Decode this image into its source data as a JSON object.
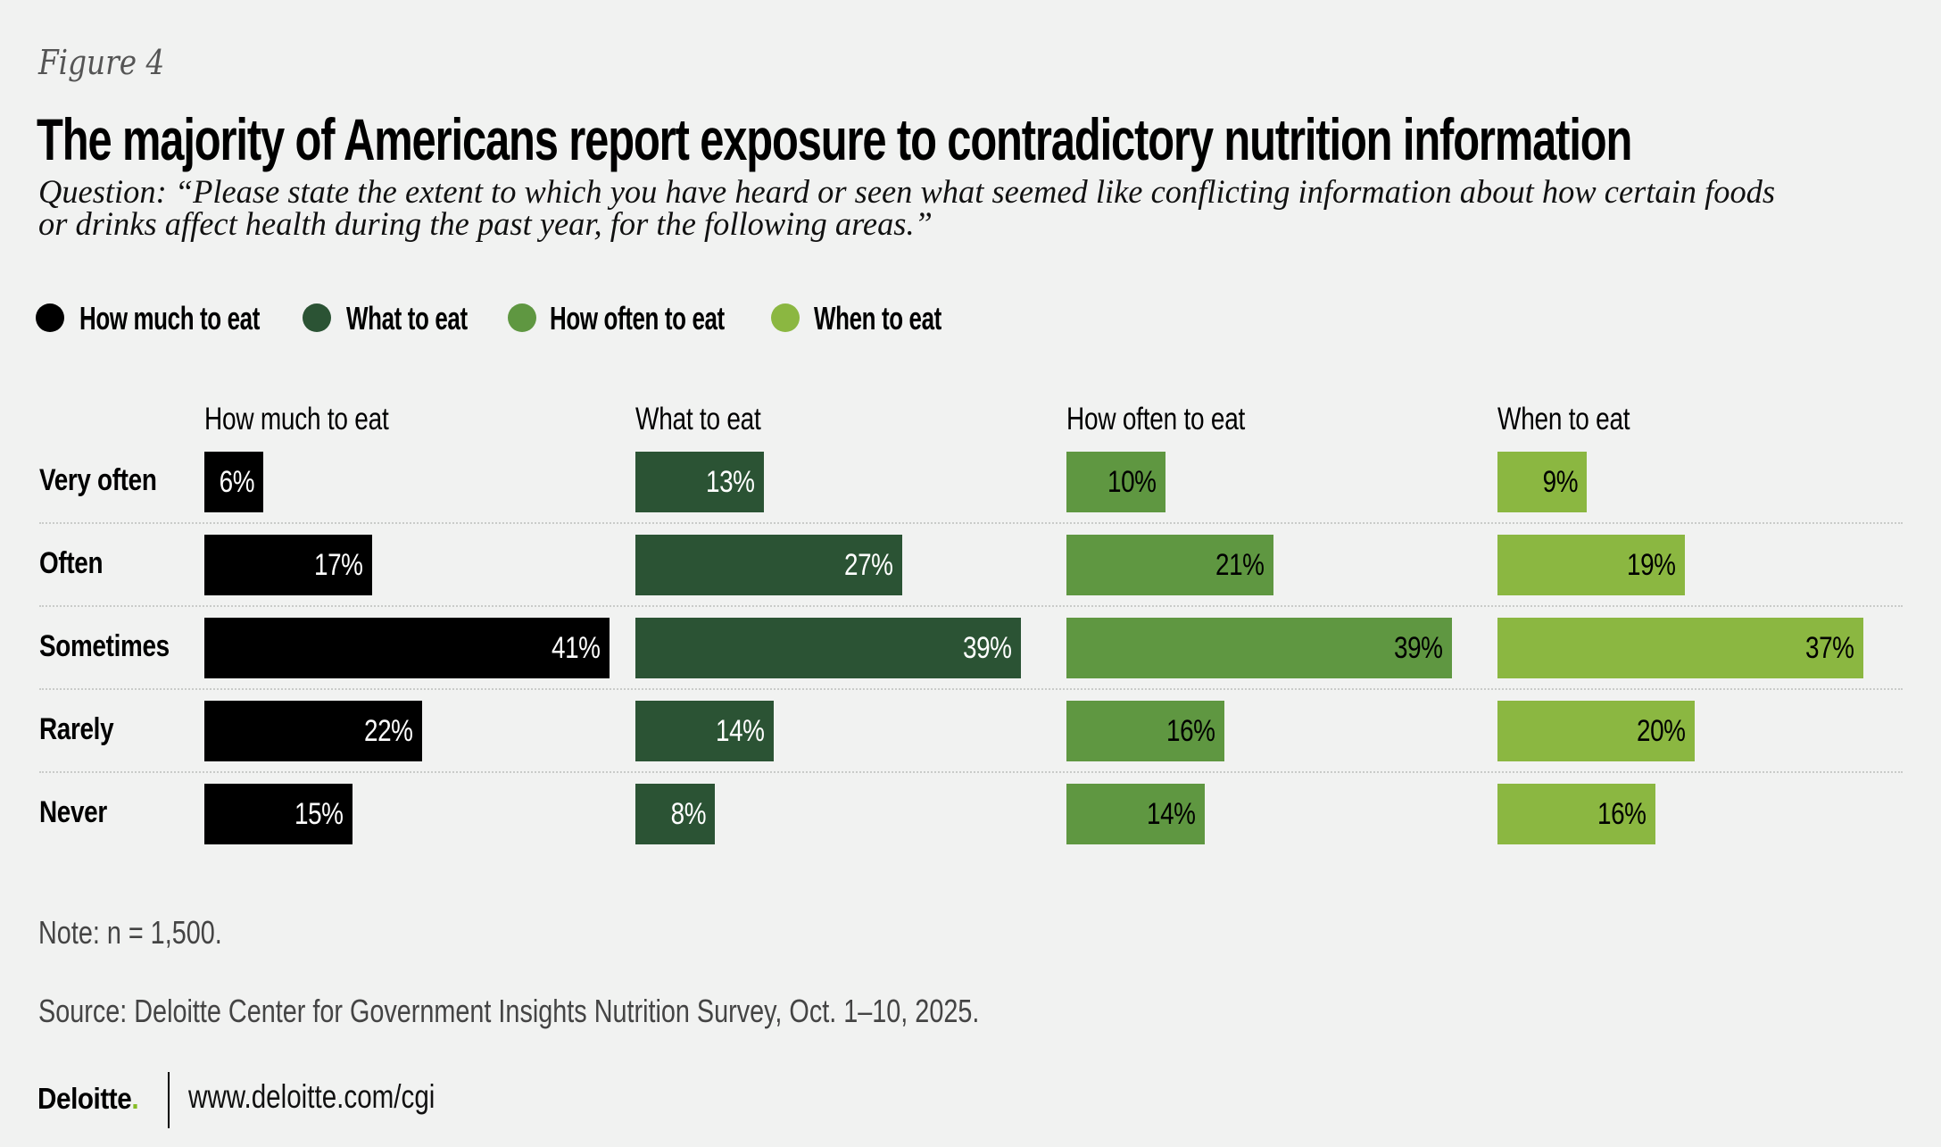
{
  "figure_label": "Figure 4",
  "footer": {
    "note": "Note: n = 1,500.",
    "source": "Source: Deloitte Center for Government Insights Nutrition Survey, Oct. 1–10, 2025.",
    "logo_text": "Deloitte",
    "logo_dot": ".",
    "url": "www.deloitte.com/cgi"
  },
  "colors": {
    "background": "#F1F2F1",
    "how_much": "#000000",
    "what": "#2B5334",
    "how_often": "#5F9741",
    "when": "#8BB741",
    "deloitte_green": "#86BC25"
  },
  "chart_data": {
    "type": "bar",
    "orientation": "horizontal",
    "layout": "small-multiples",
    "title": "The majority of Americans report exposure to contradictory nutrition information",
    "subtitle": "Question: “Please state the extent to which you have heard or seen what seemed like conflicting information about how certain foods or drinks affect health during the past year, for the following areas.”",
    "subtitle_lines": [
      "Question: “Please state the extent to which you have heard or seen what seemed like conflicting information about how certain foods",
      "or drinks affect health during the past year, for the following areas.”"
    ],
    "xlabel": "",
    "ylabel": "",
    "unit": "%",
    "xlim": [
      0,
      41
    ],
    "grid": false,
    "legend_position": "top-left",
    "categories": [
      "Very often",
      "Often",
      "Sometimes",
      "Rarely",
      "Never"
    ],
    "series": [
      {
        "name": "How much to eat",
        "color": "#000000",
        "label_color": "#FFFFFF",
        "values": [
          6,
          17,
          41,
          22,
          15
        ],
        "labels": [
          "6%",
          "17%",
          "41%",
          "22%",
          "15%"
        ]
      },
      {
        "name": "What to eat",
        "color": "#2B5334",
        "label_color": "#FFFFFF",
        "values": [
          13,
          27,
          39,
          14,
          8
        ],
        "labels": [
          "13%",
          "27%",
          "39%",
          "14%",
          "8%"
        ]
      },
      {
        "name": "How often to eat",
        "color": "#5F9741",
        "label_color": "#000000",
        "values": [
          10,
          21,
          39,
          16,
          14
        ],
        "labels": [
          "10%",
          "21%",
          "39%",
          "16%",
          "14%"
        ]
      },
      {
        "name": "When to eat",
        "color": "#8BB741",
        "label_color": "#000000",
        "values": [
          9,
          19,
          37,
          20,
          16
        ],
        "labels": [
          "9%",
          "19%",
          "37%",
          "20%",
          "16%"
        ]
      }
    ]
  }
}
